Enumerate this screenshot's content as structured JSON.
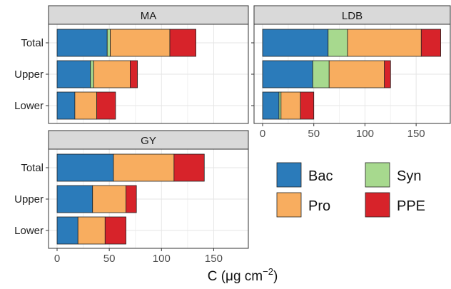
{
  "chart_data": {
    "type": "bar",
    "orientation": "horizontal",
    "stacked": true,
    "xlabel": "C (μg cm⁻²)",
    "xlabel_main": "C (μg cm",
    "xlabel_sup": "−2",
    "xlabel_close": ")",
    "xlim": [
      0,
      175
    ],
    "xticks": [
      "0",
      "50",
      "100",
      "150"
    ],
    "categories": [
      "Total",
      "Upper",
      "Lower"
    ],
    "stack_order": [
      "Bac",
      "Syn",
      "Pro",
      "PPE"
    ],
    "colors": {
      "Bac": "#2b7bba",
      "Syn": "#a7d98e",
      "Pro": "#f8ad5f",
      "PPE": "#d7232a"
    },
    "legend": {
      "position": "bottom-right",
      "items": [
        {
          "key": "Bac",
          "label": "Bac"
        },
        {
          "key": "Syn",
          "label": "Syn"
        },
        {
          "key": "Pro",
          "label": "Pro"
        },
        {
          "key": "PPE",
          "label": "PPE"
        }
      ]
    },
    "grid": true,
    "facets": [
      {
        "title": "MA",
        "rows": [
          {
            "category": "Total",
            "Bac": 48,
            "Syn": 3,
            "Pro": 57,
            "PPE": 25
          },
          {
            "category": "Upper",
            "Bac": 32,
            "Syn": 3,
            "Pro": 35,
            "PPE": 7
          },
          {
            "category": "Lower",
            "Bac": 17,
            "Syn": 0,
            "Pro": 21,
            "PPE": 18
          }
        ]
      },
      {
        "title": "LDB",
        "rows": [
          {
            "category": "Total",
            "Bac": 64,
            "Syn": 19,
            "Pro": 72,
            "PPE": 19
          },
          {
            "category": "Upper",
            "Bac": 49,
            "Syn": 16,
            "Pro": 54,
            "PPE": 6
          },
          {
            "category": "Lower",
            "Bac": 16,
            "Syn": 2,
            "Pro": 19,
            "PPE": 13
          }
        ]
      },
      {
        "title": "GY",
        "rows": [
          {
            "category": "Total",
            "Bac": 54,
            "Syn": 0,
            "Pro": 58,
            "PPE": 29
          },
          {
            "category": "Upper",
            "Bac": 34,
            "Syn": 0,
            "Pro": 32,
            "PPE": 10
          },
          {
            "category": "Lower",
            "Bac": 20,
            "Syn": 0,
            "Pro": 26,
            "PPE": 20
          }
        ]
      }
    ]
  }
}
